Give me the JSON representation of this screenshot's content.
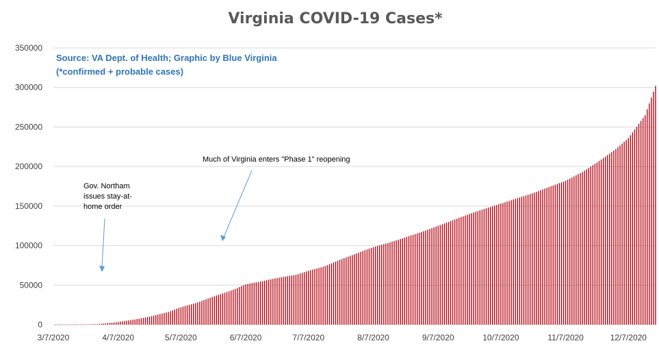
{
  "chart_data": {
    "type": "bar",
    "title": "Virginia COVID-19 Cases*",
    "xlabel": "",
    "ylabel": "",
    "ylim": [
      0,
      350000
    ],
    "xlim": [
      "2020-03-07",
      "2020-12-20"
    ],
    "y_ticks": [
      "0",
      "50000",
      "100000",
      "150000",
      "200000",
      "250000",
      "300000",
      "350000"
    ],
    "x_ticks": [
      "3/7/2020",
      "4/7/2020",
      "5/7/2020",
      "6/7/2020",
      "7/7/2020",
      "8/7/2020",
      "9/7/2020",
      "10/7/2020",
      "11/7/2020",
      "12/7/2020"
    ],
    "grid": true,
    "legend": "none",
    "bar_color": "#b3000f",
    "series": [
      {
        "x": [
          "2020-03-07",
          "2020-03-22",
          "2020-03-29",
          "2020-04-07",
          "2020-04-15",
          "2020-04-22",
          "2020-05-01",
          "2020-05-07",
          "2020-05-15",
          "2020-05-22",
          "2020-06-01",
          "2020-06-07",
          "2020-06-15",
          "2020-06-22",
          "2020-07-01",
          "2020-07-07",
          "2020-07-15",
          "2020-07-22",
          "2020-08-01",
          "2020-08-07",
          "2020-08-15",
          "2020-08-22",
          "2020-09-01",
          "2020-09-07",
          "2020-09-15",
          "2020-09-22",
          "2020-10-01",
          "2020-10-07",
          "2020-10-15",
          "2020-10-22",
          "2020-11-01",
          "2020-11-07",
          "2020-11-15",
          "2020-11-22",
          "2020-12-01",
          "2020-12-07",
          "2020-12-15",
          "2020-12-20"
        ],
        "values": [
          0,
          200,
          800,
          3300,
          6500,
          10000,
          16000,
          22000,
          28000,
          35000,
          44000,
          51000,
          55000,
          59000,
          63000,
          68000,
          74000,
          82000,
          92000,
          98000,
          104000,
          110000,
          119000,
          125000,
          133000,
          140000,
          148000,
          153000,
          160000,
          166000,
          176000,
          182000,
          193000,
          205000,
          222000,
          236000,
          265000,
          302000
        ]
      }
    ],
    "annotations": {
      "source_line1": "Source: VA Dept. of Health; Graphic by Blue Virginia",
      "source_line2": "(*confirmed + probable cases)",
      "phase1": "Much of Virginia enters \"Phase 1\" reopening",
      "stay_home": [
        "Gov. Northam",
        "issues stay-at-",
        "home order"
      ]
    },
    "annotation_color": "#2e75b6",
    "arrow_color": "#5b9bd5"
  }
}
